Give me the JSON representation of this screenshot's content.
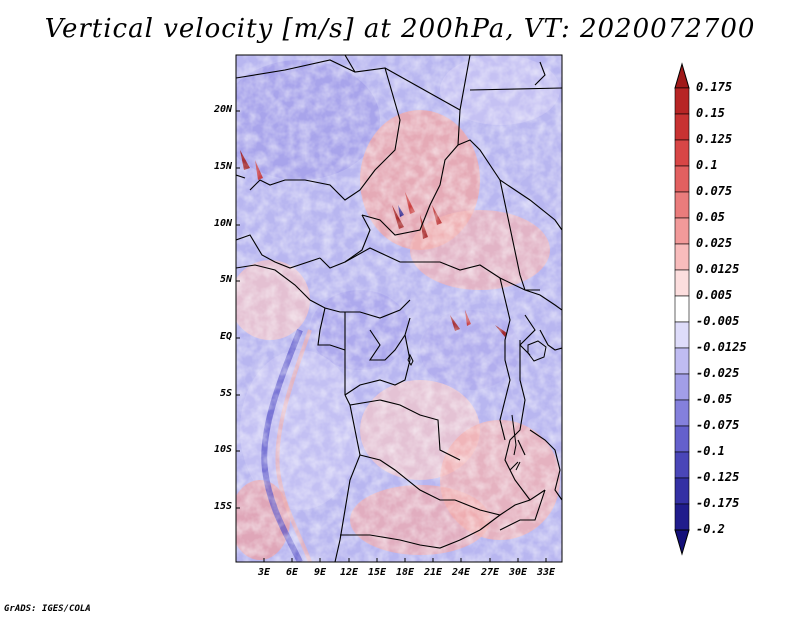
{
  "title": "Vertical velocity [m/s] at 200hPa, VT: 2020072700",
  "credit": "GrADS: IGES/COLA",
  "lat_labels": [
    "20N",
    "15N",
    "10N",
    "5N",
    "EQ",
    "5S",
    "10S",
    "15S"
  ],
  "lon_labels": [
    "3E",
    "6E",
    "9E",
    "12E",
    "15E",
    "18E",
    "21E",
    "24E",
    "27E",
    "30E",
    "33E"
  ],
  "colorbar": {
    "labels": [
      "0.175",
      "0.15",
      "0.125",
      "0.1",
      "0.075",
      "0.05",
      "0.025",
      "0.0125",
      "0.005",
      "-0.005",
      "-0.0125",
      "-0.025",
      "-0.05",
      "-0.075",
      "-0.1",
      "-0.125",
      "-0.175",
      "-0.2"
    ],
    "colors": [
      "#a01a1a",
      "#b72525",
      "#c83232",
      "#d84646",
      "#e26060",
      "#ea7c7c",
      "#f29a9a",
      "#f8bcbc",
      "#fcdede",
      "#ffffff",
      "#dedcfa",
      "#c0bcf2",
      "#a29ee8",
      "#8480dc",
      "#6460cc",
      "#4a46b8",
      "#3430a4",
      "#201c8c",
      "#14107a"
    ]
  }
}
